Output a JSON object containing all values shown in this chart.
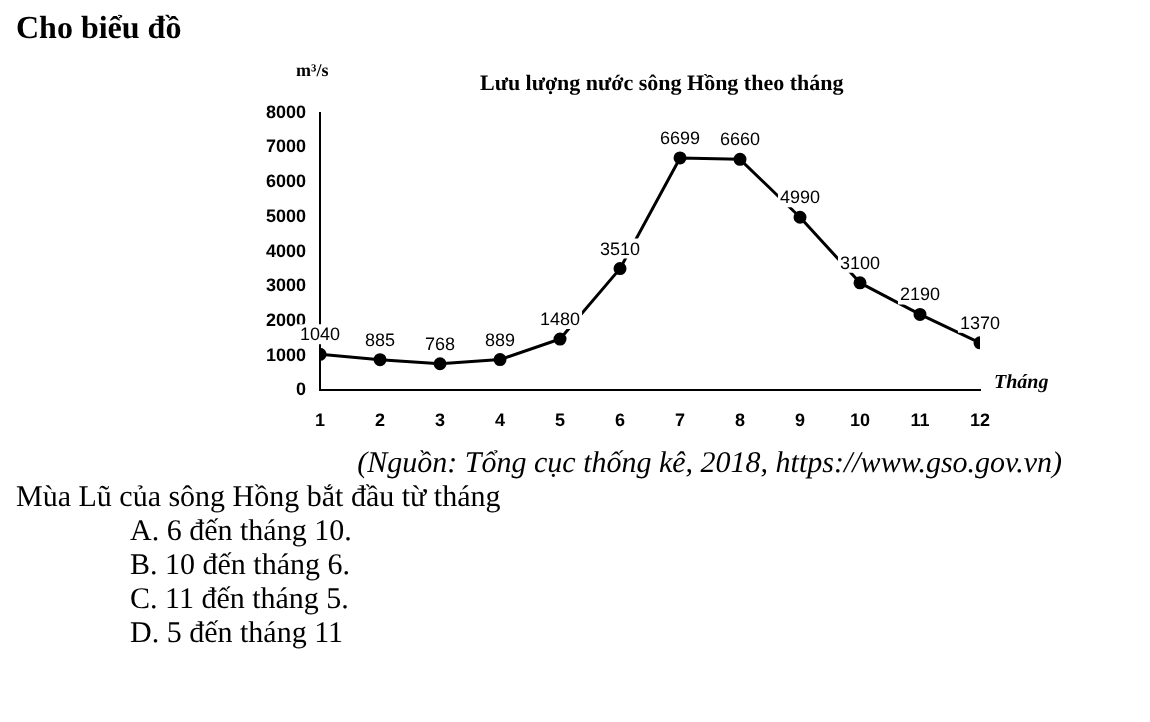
{
  "chart_data": {
    "type": "line",
    "title": "Cho biểu đồ",
    "subtitle": "Lưu lượng nước sông Hồng theo tháng",
    "xlabel": "Tháng",
    "ylabel": "m³/s",
    "x": [
      1,
      2,
      3,
      4,
      5,
      6,
      7,
      8,
      9,
      10,
      11,
      12
    ],
    "xlim": [
      1,
      12
    ],
    "xticks": [
      1,
      2,
      3,
      4,
      5,
      6,
      7,
      8,
      9,
      10,
      11,
      12
    ],
    "series": [
      {
        "color": "#000000",
        "values": [
          1040,
          885,
          768,
          889,
          1480,
          3510,
          6699,
          6660,
          4990,
          3100,
          2190,
          1370
        ]
      }
    ],
    "ylim": [
      0,
      8000
    ],
    "yticks": [
      0,
      1000,
      2000,
      3000,
      4000,
      5000,
      6000,
      7000,
      8000
    ],
    "grid": false,
    "legend": false,
    "marker": "circle",
    "line_style": "solid",
    "data_labels": true,
    "annotations": [
      "(Nguồn: Tổng cục thống kê, 2018, https://www.gso.gov.vn)",
      "Mùa Lũ của sông Hồng bắt đầu từ tháng",
      "A. 6 đến tháng 10.",
      "B. 10 đến tháng 6.",
      "C. 11 đến tháng 5.",
      "D. 5 đến tháng 11"
    ]
  }
}
